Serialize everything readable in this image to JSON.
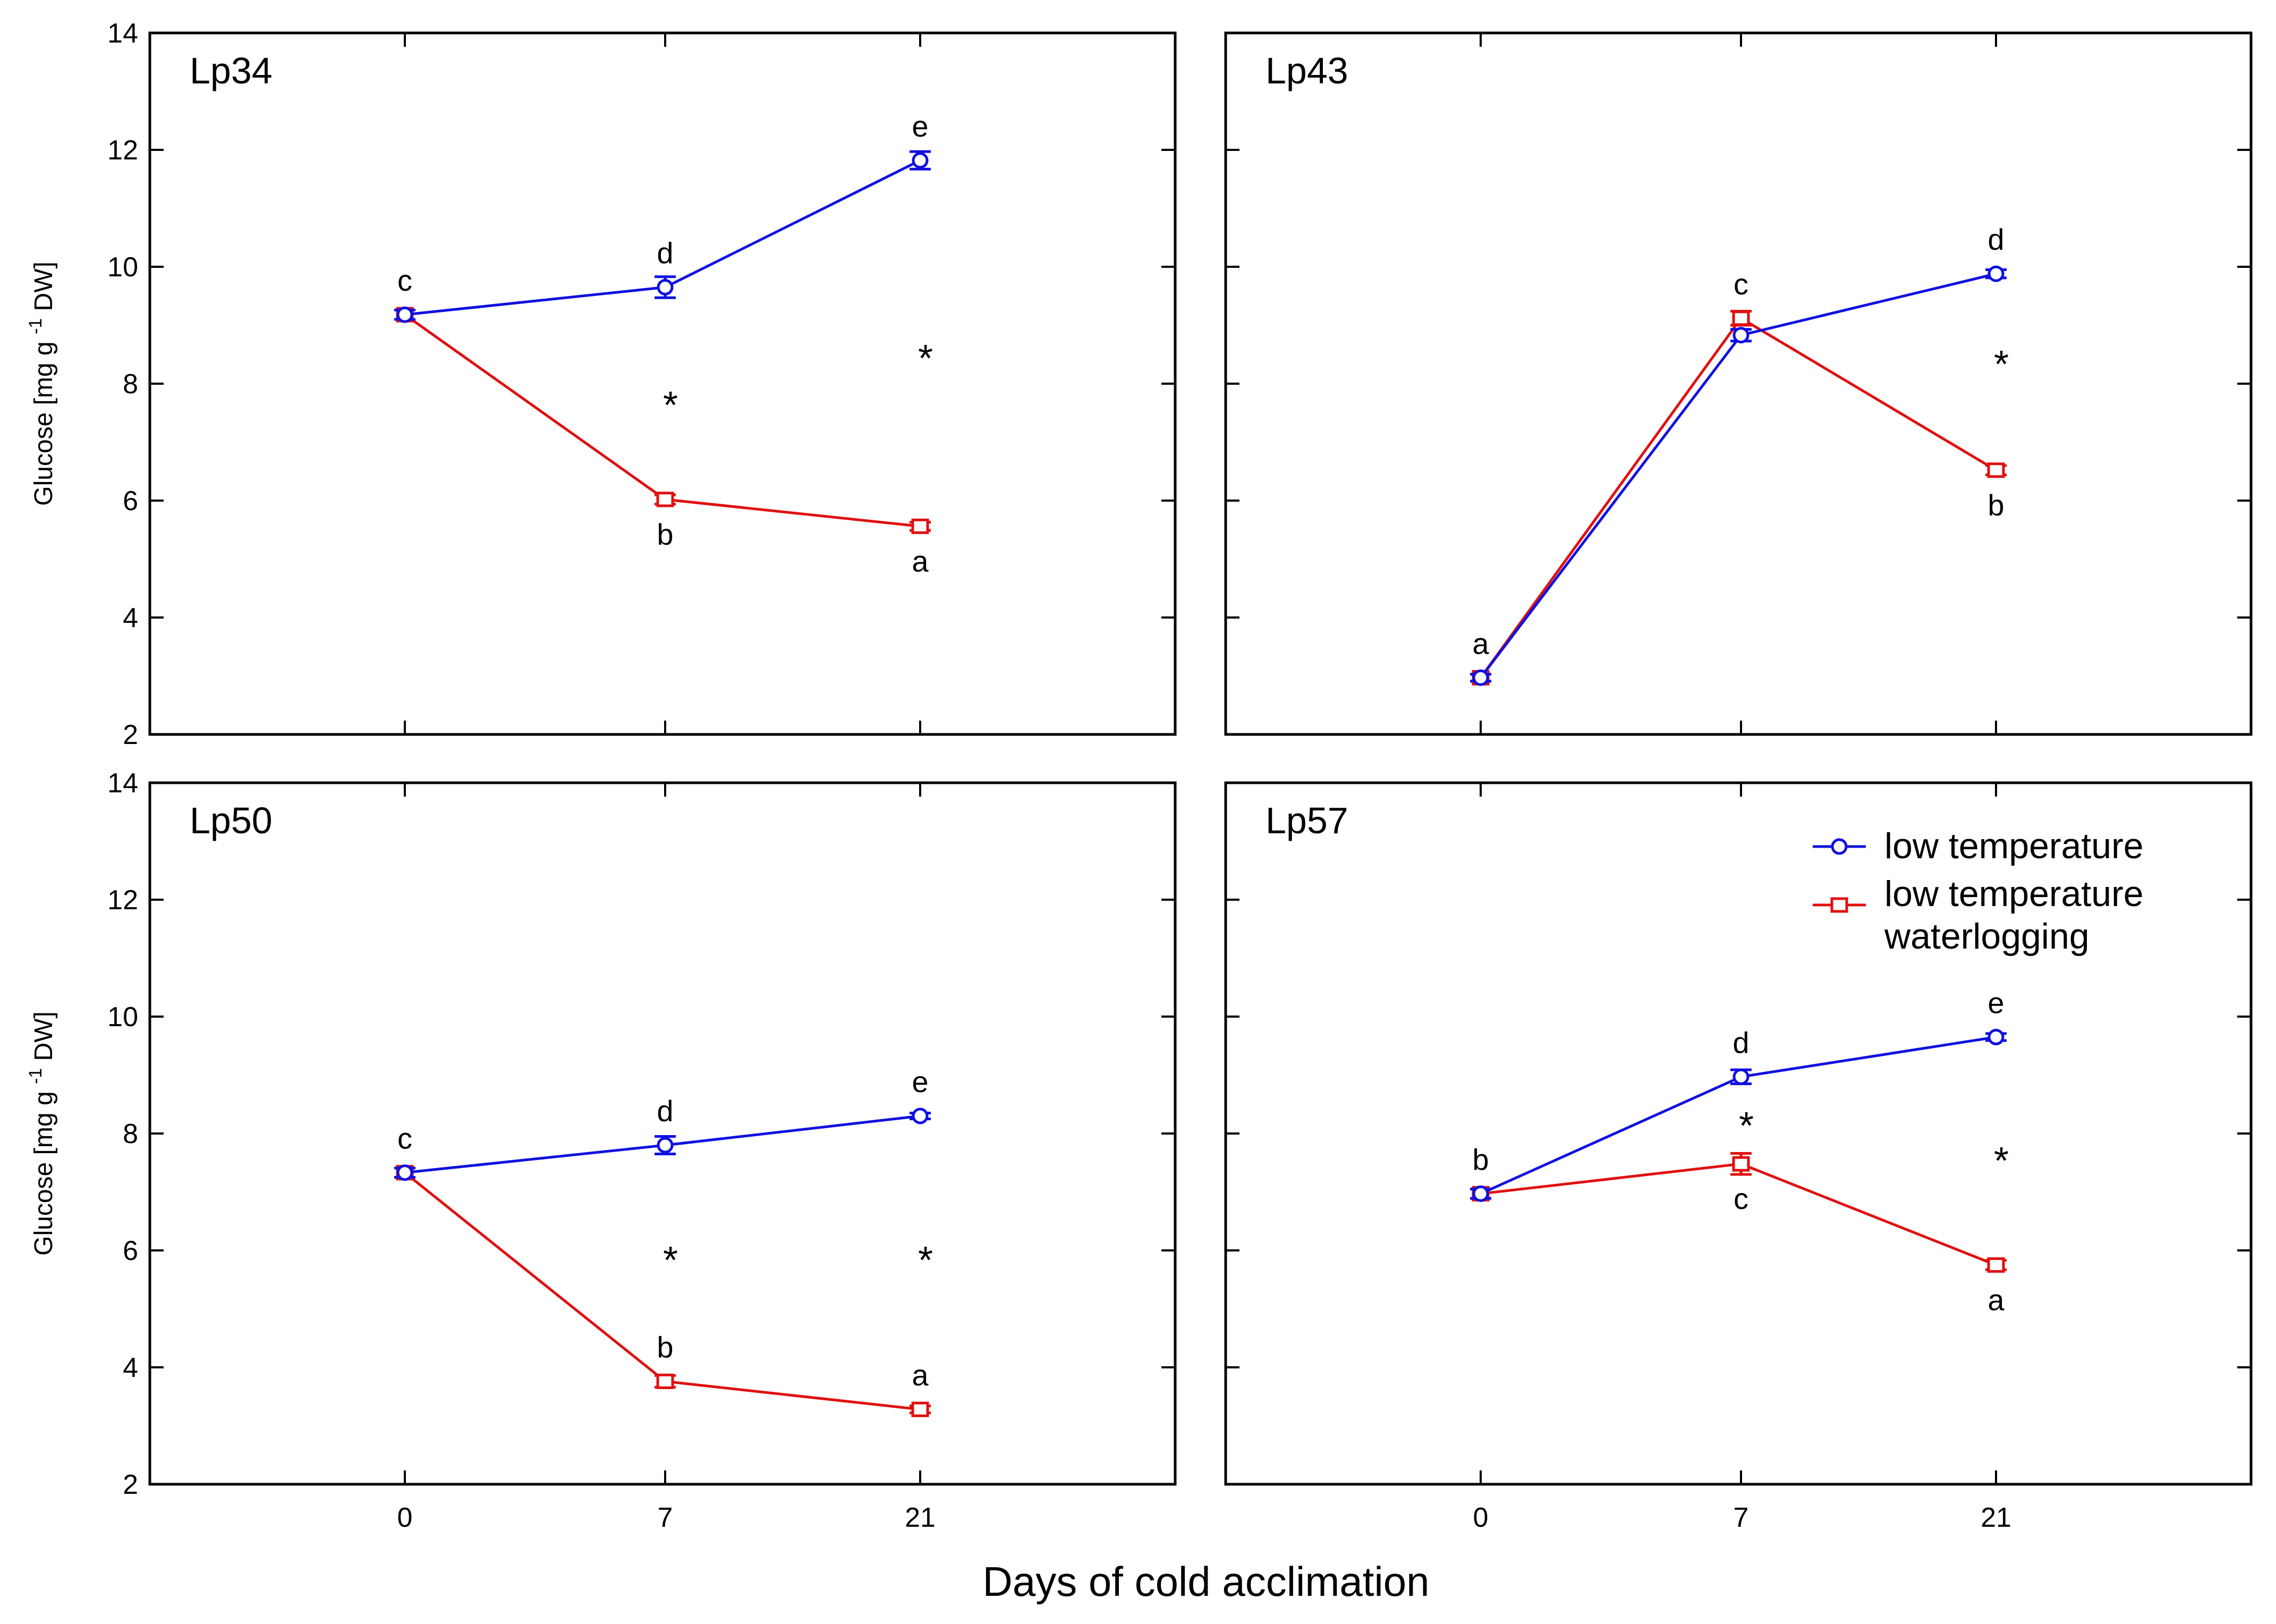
{
  "figure": {
    "xlabel": "Days of cold acclimation",
    "ylabel": "Glucose [mg g -1 DW]",
    "ylabel_parts": {
      "main": "Glucose [mg g",
      "sup": "-1",
      "tail": " DW]"
    }
  },
  "legend": {
    "location": "top-right of Lp57 panel",
    "entries": [
      {
        "label_lines": [
          "low temperature"
        ],
        "color": "#1010e0",
        "marker": "circle"
      },
      {
        "label_lines": [
          "low temperature",
          "waterlogging"
        ],
        "color": "#e01010",
        "marker": "square"
      }
    ]
  },
  "chart_data": [
    {
      "type": "line",
      "title": "Lp34",
      "categories": [
        "0",
        "7",
        "21"
      ],
      "ylim": [
        2,
        14
      ],
      "yticks": [
        "2",
        "4",
        "6",
        "8",
        "10",
        "12",
        "14"
      ],
      "series": [
        {
          "name": "low temperature",
          "color": "#1010e0",
          "marker": "circle",
          "values": [
            9.18,
            9.65,
            11.82
          ],
          "errors": [
            0.08,
            0.18,
            0.15
          ],
          "letters": [
            "c",
            "d",
            "e"
          ],
          "letter_pos": [
            "above",
            "above",
            "above"
          ]
        },
        {
          "name": "low temperature waterlogging",
          "color": "#e01010",
          "marker": "square",
          "values": [
            9.18,
            6.02,
            5.56
          ],
          "errors": [
            0.08,
            0.08,
            0.07
          ],
          "letters": [
            "",
            "b",
            "a"
          ],
          "letter_pos": [
            "below",
            "below",
            "below"
          ]
        }
      ],
      "asterisks": [
        {
          "x": "7",
          "y": 7.7
        },
        {
          "x": "21",
          "y": 8.5
        }
      ]
    },
    {
      "type": "line",
      "title": "Lp43",
      "categories": [
        "0",
        "7",
        "21"
      ],
      "ylim": [
        2,
        14
      ],
      "yticks": [
        "2",
        "4",
        "6",
        "8",
        "10",
        "12",
        "14"
      ],
      "series": [
        {
          "name": "low temperature",
          "color": "#1010e0",
          "marker": "circle",
          "values": [
            2.97,
            8.83,
            9.88
          ],
          "errors": [
            0.06,
            0.1,
            0.07
          ],
          "letters": [
            "a",
            "",
            "d"
          ],
          "letter_pos": [
            "above",
            "above",
            "above"
          ]
        },
        {
          "name": "low temperature waterlogging",
          "color": "#e01010",
          "marker": "square",
          "values": [
            2.97,
            9.12,
            6.52
          ],
          "errors": [
            0.06,
            0.12,
            0.08
          ],
          "letters": [
            "",
            "c",
            "b"
          ],
          "letter_pos": [
            "above",
            "above",
            "below"
          ]
        }
      ],
      "asterisks": [
        {
          "x": "21",
          "y": 8.4
        }
      ]
    },
    {
      "type": "line",
      "title": "Lp50",
      "categories": [
        "0",
        "7",
        "21"
      ],
      "ylim": [
        2,
        14
      ],
      "yticks": [
        "2",
        "4",
        "6",
        "8",
        "10",
        "12",
        "14"
      ],
      "series": [
        {
          "name": "low temperature",
          "color": "#1010e0",
          "marker": "circle",
          "values": [
            7.33,
            7.8,
            8.3
          ],
          "errors": [
            0.08,
            0.15,
            0.05
          ],
          "letters": [
            "c",
            "d",
            "e"
          ],
          "letter_pos": [
            "above",
            "above",
            "above"
          ]
        },
        {
          "name": "low temperature waterlogging",
          "color": "#e01010",
          "marker": "square",
          "values": [
            7.33,
            3.76,
            3.28
          ],
          "errors": [
            0.08,
            0.1,
            0.06
          ],
          "letters": [
            "",
            "b",
            "a"
          ],
          "letter_pos": [
            "above",
            "above",
            "above"
          ]
        }
      ],
      "asterisks": [
        {
          "x": "7",
          "y": 5.9
        },
        {
          "x": "21",
          "y": 5.9
        }
      ]
    },
    {
      "type": "line",
      "title": "Lp57",
      "categories": [
        "0",
        "7",
        "21"
      ],
      "ylim": [
        2,
        14
      ],
      "yticks": [
        "2",
        "4",
        "6",
        "8",
        "10",
        "12",
        "14"
      ],
      "series": [
        {
          "name": "low temperature",
          "color": "#1010e0",
          "marker": "circle",
          "values": [
            6.97,
            8.97,
            9.65
          ],
          "errors": [
            0.08,
            0.12,
            0.06
          ],
          "letters": [
            "b",
            "d",
            "e"
          ],
          "letter_pos": [
            "above",
            "above",
            "above"
          ]
        },
        {
          "name": "low temperature waterlogging",
          "color": "#e01010",
          "marker": "square",
          "values": [
            6.97,
            7.48,
            5.75
          ],
          "errors": [
            0.08,
            0.18,
            0.08
          ],
          "letters": [
            "",
            "c",
            "a"
          ],
          "letter_pos": [
            "below",
            "below",
            "below"
          ]
        }
      ],
      "asterisks": [
        {
          "x": "7",
          "y": 8.2
        },
        {
          "x": "21",
          "y": 7.6
        }
      ]
    }
  ]
}
